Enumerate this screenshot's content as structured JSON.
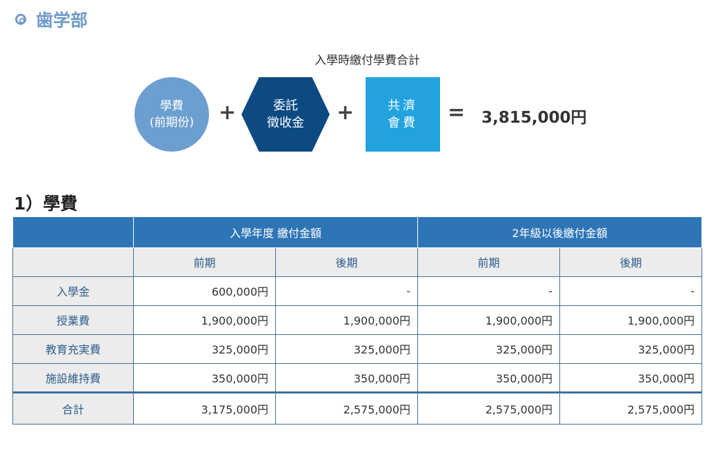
{
  "department": {
    "title": "歯学部"
  },
  "formula": {
    "title": "入學時繳付學費合計",
    "circle": {
      "line1": "學費",
      "line2": "(前期份)"
    },
    "hexagon": {
      "line1": "委託",
      "line2": "徵收金"
    },
    "square": {
      "line1": "共濟",
      "line2": "會費"
    },
    "plus": "+",
    "equals": "=",
    "total": "3,815,000円",
    "colors": {
      "circle": "#6c9fcf",
      "hexagon": "#0d4a82",
      "square": "#22a3df"
    }
  },
  "section": {
    "title": "1）學費"
  },
  "table": {
    "group_headers": [
      "入學年度 繳付金額",
      "2年級以後繳付金額"
    ],
    "sub_headers": [
      "前期",
      "後期",
      "前期",
      "後期"
    ],
    "rows": [
      {
        "label": "入學金",
        "values": [
          "600,000円",
          "-",
          "-",
          "-"
        ]
      },
      {
        "label": "授業費",
        "values": [
          "1,900,000円",
          "1,900,000円",
          "1,900,000円",
          "1,900,000円"
        ]
      },
      {
        "label": "教育充実費",
        "values": [
          "325,000円",
          "325,000円",
          "325,000円",
          "325,000円"
        ]
      },
      {
        "label": "施設維持費",
        "values": [
          "350,000円",
          "350,000円",
          "350,000円",
          "350,000円"
        ]
      }
    ],
    "total_row": {
      "label": "合計",
      "values": [
        "3,175,000円",
        "2,575,000円",
        "2,575,000円",
        "2,575,000円"
      ]
    }
  }
}
